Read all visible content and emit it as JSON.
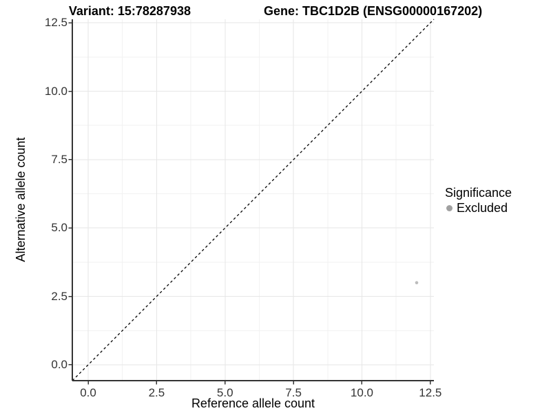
{
  "header": {
    "variant_label": "Variant: 15:78287938",
    "gene_label": "Gene: TBC1D2B (ENSG00000167202)"
  },
  "chart_data": {
    "type": "scatter",
    "title": "Variant: 15:78287938   Gene: TBC1D2B (ENSG00000167202)",
    "xlabel": "Reference allele count",
    "ylabel": "Alternative allele count",
    "xlim": [
      -0.58,
      12.63
    ],
    "ylim": [
      -0.58,
      12.63
    ],
    "x_ticks": [
      0.0,
      2.5,
      5.0,
      7.5,
      10.0,
      12.5
    ],
    "x_tick_labels": [
      "0.0",
      "2.5",
      "5.0",
      "7.5",
      "10.0",
      "12.5"
    ],
    "y_ticks": [
      0.0,
      2.5,
      5.0,
      7.5,
      10.0,
      12.5
    ],
    "y_tick_labels": [
      "0.0",
      "2.5",
      "5.0",
      "7.5",
      "10.0",
      "12.5"
    ],
    "minor_tick_step": 1.25,
    "grid": true,
    "series": [
      {
        "name": "Excluded",
        "color": "#bcbcbc",
        "point_radius": 2.3,
        "points": [
          {
            "x": 12,
            "y": 3
          }
        ]
      }
    ],
    "reference_line": {
      "kind": "identity",
      "equation": "y = x",
      "style": "dashed",
      "color": "#000000"
    },
    "legend": {
      "title": "Significance",
      "position": "right",
      "entries": [
        {
          "label": "Excluded",
          "marker_color": "#a0a0a0"
        }
      ]
    }
  },
  "colors": {
    "background": "#ffffff",
    "grid_major": "#e6e6e6",
    "grid_minor": "#f2f2f2",
    "axis_line": "#333333",
    "tick_mark": "#333333",
    "tick_text": "#333333",
    "point": "#bcbcbc",
    "legend_marker": "#a0a0a0"
  }
}
